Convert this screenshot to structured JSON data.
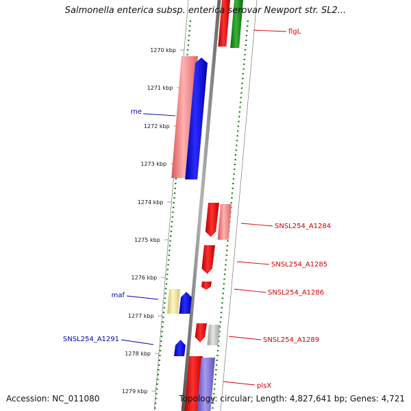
{
  "title": "Salmonella enterica subsp. enterica serovar Newport str. SL2...",
  "footer": {
    "accession": "Accession: NC_011080",
    "summary": "Topology: circular; Length: 4,827,641 bp; Genes: 4,721"
  },
  "colors": {
    "forward_gene": "#ff0000",
    "reverse_gene": "#0000ff",
    "forward_label": "#cc0000",
    "reverse_label": "#0000aa",
    "backbone": "#888888",
    "dotted_track": "#1a7a1a"
  },
  "ticks": [
    {
      "label": "1270 kbp"
    },
    {
      "label": "1271 kbp"
    },
    {
      "label": "1272 kbp"
    },
    {
      "label": "1273 kbp"
    },
    {
      "label": "1274 kbp"
    },
    {
      "label": "1275 kbp"
    },
    {
      "label": "1276 kbp"
    },
    {
      "label": "1277 kbp"
    },
    {
      "label": "1278 kbp"
    },
    {
      "label": "1279 kbp"
    }
  ],
  "genes": [
    {
      "label": "flgL",
      "strand": "forward"
    },
    {
      "label": "rne",
      "strand": "reverse"
    },
    {
      "label": "SNSL254_A1284",
      "strand": "forward"
    },
    {
      "label": "SNSL254_A1285",
      "strand": "forward"
    },
    {
      "label": "SNSL254_A1286",
      "strand": "forward"
    },
    {
      "label": "maf",
      "strand": "reverse"
    },
    {
      "label": "SNSL254_A1289",
      "strand": "forward"
    },
    {
      "label": "SNSL254_A1291",
      "strand": "reverse"
    },
    {
      "label": "plsX",
      "strand": "forward"
    }
  ]
}
